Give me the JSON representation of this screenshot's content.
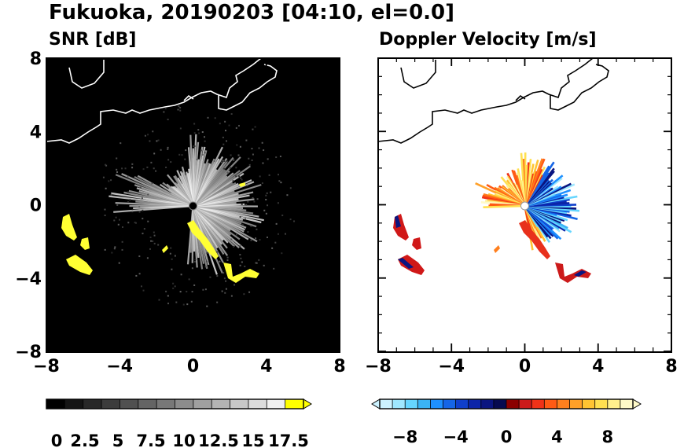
{
  "figure": {
    "title": "Fukuoka, 20190203 [04:10, el=0.0]"
  },
  "chart_data": [
    {
      "type": "heatmap",
      "title": "SNR [dB]",
      "xlim": [
        -8,
        8
      ],
      "ylim": [
        -8,
        8
      ],
      "xticks": [
        "−8",
        "−4",
        "0",
        "4",
        "8"
      ],
      "yticks": [
        "−8",
        "−4",
        "0",
        "4",
        "8"
      ],
      "background_color": "#000000",
      "colorbar": {
        "ticks": [
          "0",
          "2.5",
          "5",
          "7.5",
          "10",
          "12.5",
          "15",
          "17.5"
        ],
        "range": [
          0,
          20
        ],
        "extend": "max",
        "colors": [
          "#000000",
          "#141414",
          "#282828",
          "#3c3c3c",
          "#505050",
          "#646464",
          "#787878",
          "#8c8c8c",
          "#a0a0a0",
          "#b4b4b4",
          "#c8c8c8",
          "#dcdcdc",
          "#f0f0f0",
          "#ffff00"
        ]
      }
    },
    {
      "type": "heatmap",
      "title": "Doppler Velocity [m/s]",
      "xlim": [
        -8,
        8
      ],
      "ylim": [
        -8,
        8
      ],
      "xticks": [
        "−8",
        "−4",
        "0",
        "4",
        "8"
      ],
      "yticks": [
        "−8",
        "−4",
        "0",
        "4",
        "8"
      ],
      "background_color": "#ffffff",
      "colorbar": {
        "ticks": [
          "−8",
          "−4",
          "0",
          "4",
          "8"
        ],
        "range": [
          -10,
          10
        ],
        "extend": "both",
        "colors": [
          "#ccf2ff",
          "#9fe8ff",
          "#66d6ff",
          "#3bb4f5",
          "#1e90ff",
          "#1565e6",
          "#0f3fcc",
          "#0c24a8",
          "#0a1580",
          "#060a50",
          "#8b0000",
          "#cc1a1a",
          "#f03218",
          "#ff5a14",
          "#ff7f1e",
          "#ffa028",
          "#ffc432",
          "#ffe050",
          "#fff08c",
          "#fffac8"
        ]
      }
    }
  ]
}
